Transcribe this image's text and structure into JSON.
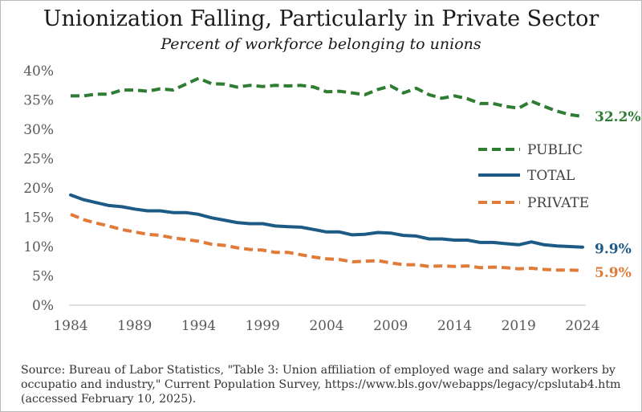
{
  "chart_data": {
    "type": "line",
    "title": "Unionization Falling, Particularly in Private Sector",
    "subtitle": "Percent of workforce belonging to unions",
    "xlabel": "",
    "ylabel": "",
    "xlim": [
      1984,
      2024
    ],
    "ylim": [
      0,
      40
    ],
    "x_ticks": [
      "1984",
      "1989",
      "1994",
      "1999",
      "2004",
      "2009",
      "2014",
      "2019",
      "2024"
    ],
    "y_ticks": [
      "0%",
      "5%",
      "10%",
      "15%",
      "20%",
      "25%",
      "30%",
      "35%",
      "40%"
    ],
    "grid": false,
    "legend_position": "right",
    "x": [
      1984,
      1985,
      1986,
      1987,
      1988,
      1989,
      1990,
      1991,
      1992,
      1993,
      1994,
      1995,
      1996,
      1997,
      1998,
      1999,
      2000,
      2001,
      2002,
      2003,
      2004,
      2005,
      2006,
      2007,
      2008,
      2009,
      2010,
      2011,
      2012,
      2013,
      2014,
      2015,
      2016,
      2017,
      2018,
      2019,
      2020,
      2021,
      2022,
      2023,
      2024
    ],
    "series": [
      {
        "name": "PUBLIC",
        "color": "#2e7d32",
        "dash": "dashed",
        "end_label": "32.2%",
        "values": [
          35.7,
          35.7,
          36.0,
          36.0,
          36.7,
          36.7,
          36.5,
          36.9,
          36.7,
          37.7,
          38.7,
          37.8,
          37.7,
          37.2,
          37.5,
          37.3,
          37.5,
          37.4,
          37.5,
          37.2,
          36.4,
          36.5,
          36.2,
          35.9,
          36.8,
          37.4,
          36.2,
          37.0,
          35.9,
          35.3,
          35.7,
          35.2,
          34.4,
          34.4,
          33.9,
          33.6,
          34.8,
          33.9,
          33.1,
          32.5,
          32.2
        ]
      },
      {
        "name": "TOTAL",
        "color": "#1d5a86",
        "dash": "solid",
        "end_label": "9.9%",
        "values": [
          18.8,
          18.0,
          17.5,
          17.0,
          16.8,
          16.4,
          16.1,
          16.1,
          15.8,
          15.8,
          15.5,
          14.9,
          14.5,
          14.1,
          13.9,
          13.9,
          13.5,
          13.4,
          13.3,
          12.9,
          12.5,
          12.5,
          12.0,
          12.1,
          12.4,
          12.3,
          11.9,
          11.8,
          11.3,
          11.3,
          11.1,
          11.1,
          10.7,
          10.7,
          10.5,
          10.3,
          10.8,
          10.3,
          10.1,
          10.0,
          9.9
        ]
      },
      {
        "name": "PRIVATE",
        "color": "#e07b39",
        "dash": "dashed",
        "end_label": "5.9%",
        "values": [
          15.5,
          14.6,
          14.0,
          13.5,
          12.9,
          12.5,
          12.1,
          11.9,
          11.5,
          11.2,
          10.9,
          10.4,
          10.2,
          9.8,
          9.5,
          9.4,
          9.0,
          9.0,
          8.6,
          8.2,
          7.9,
          7.8,
          7.4,
          7.5,
          7.6,
          7.2,
          6.9,
          6.9,
          6.6,
          6.7,
          6.6,
          6.7,
          6.4,
          6.5,
          6.4,
          6.2,
          6.3,
          6.1,
          6.0,
          6.0,
          5.9
        ]
      }
    ]
  },
  "source": {
    "lines": [
      "Source: Bureau of Labor Statistics, \"Table 3: Union affiliation of employed wage and salary workers by",
      "occupatio and industry,\" Current Population Survey, https://www.bls.gov/webapps/legacy/cpslutab4.htm",
      "(accessed February 10, 2025)."
    ]
  }
}
